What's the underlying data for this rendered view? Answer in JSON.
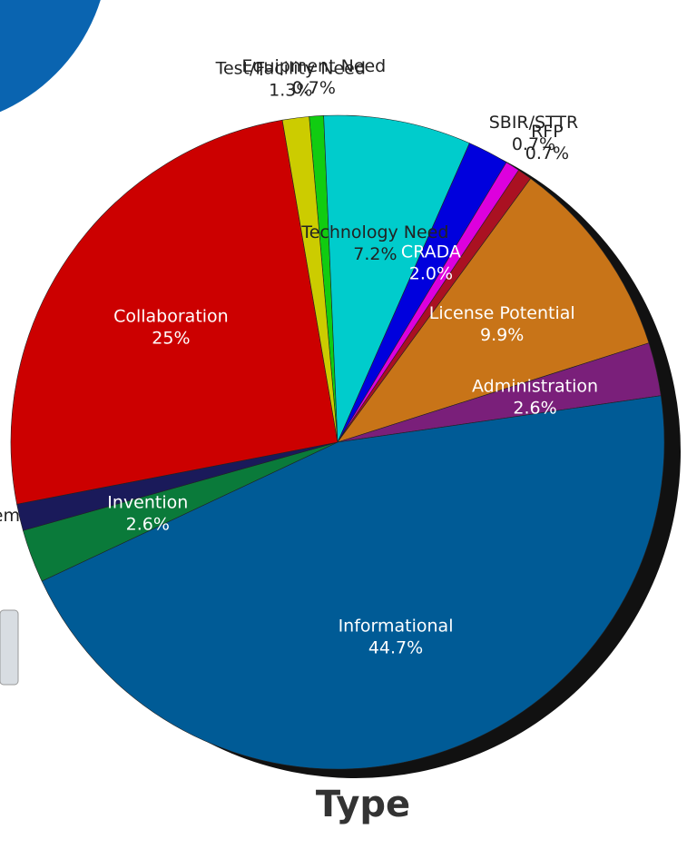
{
  "chart_data": {
    "type": "pie",
    "title": "Type",
    "labels": [
      "Equipment Need",
      "Technology Need",
      "CRADA",
      "SBIR/STTR",
      "RFP",
      "License Potential",
      "Administration",
      "Informational",
      "Invention",
      "em",
      "Collaboration",
      "Test/Facility Need"
    ],
    "values": [
      0.7,
      7.2,
      2.0,
      0.7,
      0.7,
      9.9,
      2.6,
      44.7,
      2.6,
      1.3,
      25,
      1.3
    ],
    "value_labels": [
      "0.7%",
      "7.2%",
      "2.0%",
      "0.7%",
      "0.7%",
      "9.9%",
      "2.6%",
      "44.7%",
      "2.6%",
      null,
      "25%",
      "1.3%"
    ],
    "colors": [
      "#11cc11",
      "#00cccc",
      "#0000dd",
      "#dd00dd",
      "#aa1122",
      "#c87418",
      "#7a1f7a",
      "#005b96",
      "#0a7a3a",
      "#1a1a5a",
      "#cc0000",
      "#cccc00"
    ]
  }
}
